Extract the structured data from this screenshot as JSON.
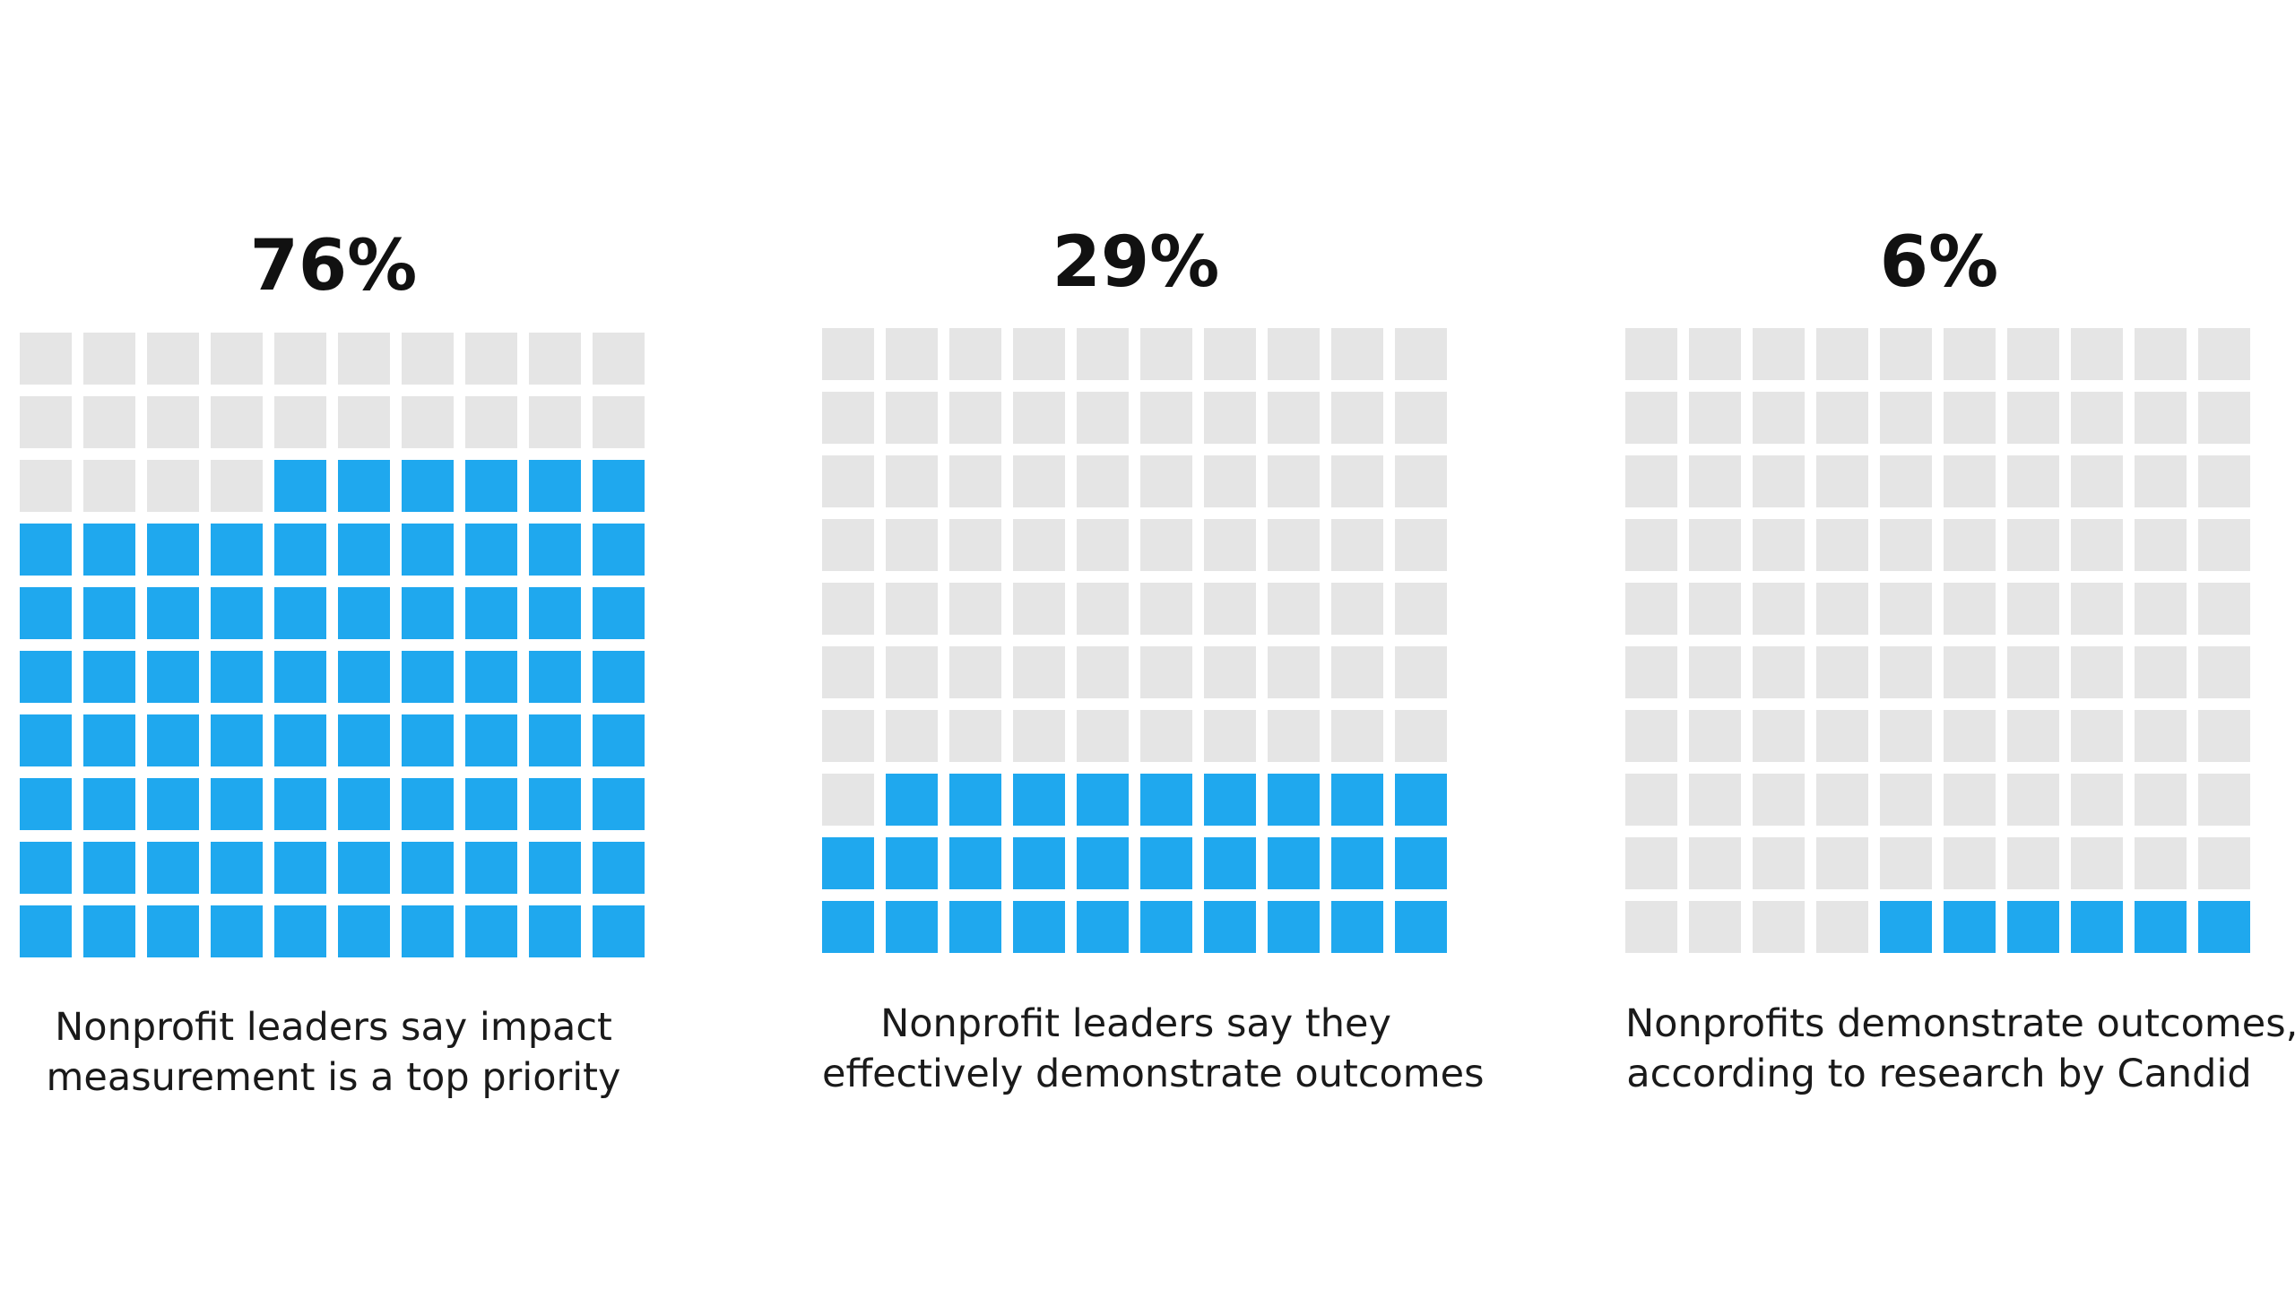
{
  "chart_data": [
    {
      "type": "waffle",
      "value": 76,
      "value_label": "76%",
      "caption_lines": [
        "Nonprofit leaders say impact",
        "measurement is a top priority"
      ],
      "grid_rows": 10,
      "grid_cols": 10,
      "filled_color": "#1fa8ee",
      "empty_color": "#e5e5e5"
    },
    {
      "type": "waffle",
      "value": 29,
      "value_label": "29%",
      "caption_lines": [
        "Nonprofit leaders say they",
        "effectively demonstrate outcomes"
      ],
      "grid_rows": 10,
      "grid_cols": 10,
      "filled_color": "#1fa8ee",
      "empty_color": "#e5e5e5"
    },
    {
      "type": "waffle",
      "value": 6,
      "value_label": "6%",
      "caption_lines": [
        "Nonprofits demonstrate outcomes,",
        "according to research by Candid"
      ],
      "grid_rows": 10,
      "grid_cols": 10,
      "filled_color": "#1fa8ee",
      "empty_color": "#e5e5e5"
    }
  ]
}
